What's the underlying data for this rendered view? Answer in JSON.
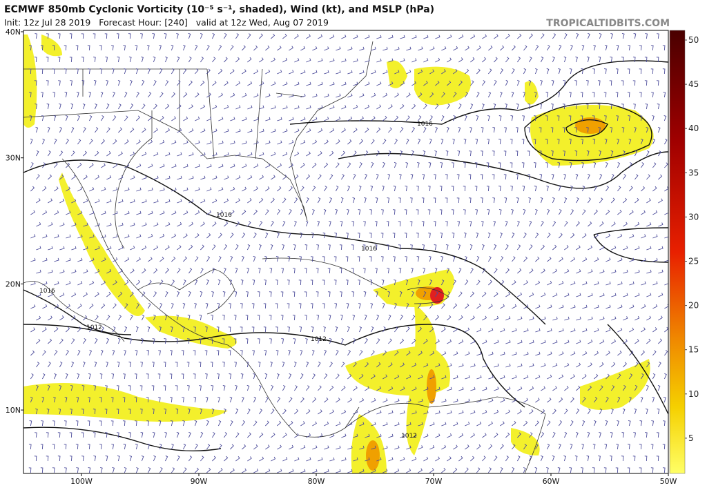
{
  "header": {
    "title": "ECMWF 850mb Cyclonic Vorticity (10⁻⁵ s⁻¹, shaded), Wind (kt), and MSLP (hPa)",
    "subtitle": "Init: 12z Jul 28 2019   Forecast Hour: [240]   valid at 12z Wed, Aug 07 2019",
    "watermark": "TROPICALTIDBITS.COM"
  },
  "map": {
    "lat_labels": [
      "40N",
      "30N",
      "20N",
      "10N"
    ],
    "lon_labels": [
      "100W",
      "90W",
      "80W",
      "70W",
      "60W",
      "50W"
    ],
    "isobar_labels": [
      "1016",
      "1016",
      "1016",
      "1016",
      "1012",
      "1012",
      "1012"
    ]
  },
  "colorbar": {
    "ticks": [
      50,
      45,
      40,
      35,
      30,
      25,
      20,
      15,
      10,
      5
    ]
  }
}
